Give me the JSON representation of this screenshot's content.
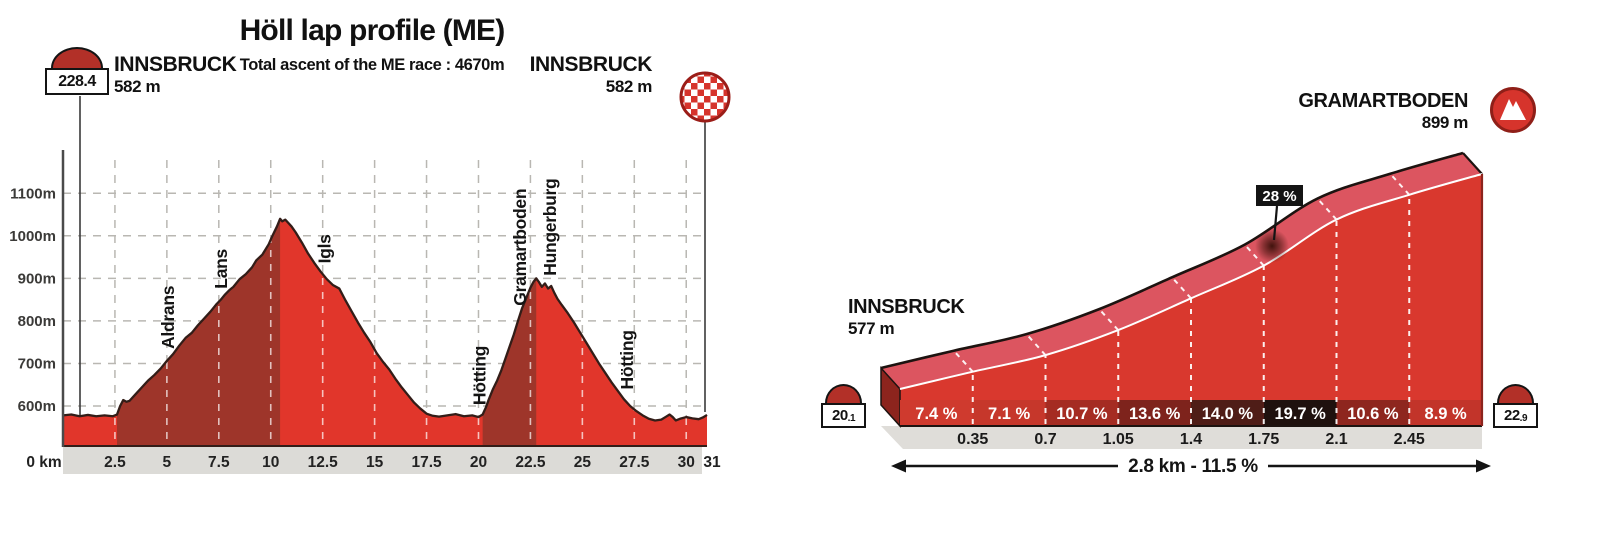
{
  "colors": {
    "bright_red": "#e1362b",
    "dark_red": "#9e352a",
    "outline": "#331d18",
    "grid": "#b9b7b2",
    "axis_strip": "#dcdbd7",
    "axis_text": "#222222",
    "face_red": "#d9382e",
    "top_band": "#dc5560",
    "side_cap": "#8c241d",
    "plinth": "#dfddd9",
    "white_line": "#ffffff",
    "callout_bg": "#141414",
    "cells": [
      "#cf3a2e",
      "#c6372b",
      "#a52c22",
      "#7e231c",
      "#4f1d17",
      "#1f110e",
      "#8e261e",
      "#c2342a"
    ],
    "stone_dome": "#b23028",
    "icon_red": "#d6342c",
    "icon_rim": "#8f1f18"
  },
  "chart_data": [
    {
      "type": "area",
      "title": "Höll lap profile (ME)",
      "subtitle": "Total ascent of the ME race : 4670m",
      "start": {
        "stone": "228.4",
        "name": "INNSBRUCK",
        "elev": "582 m"
      },
      "finish": {
        "name": "INNSBRUCK",
        "elev": "582 m"
      },
      "x_zero_label": "0 km",
      "x_ticks": [
        2.5,
        5,
        7.5,
        10,
        12.5,
        15,
        17.5,
        20,
        22.5,
        25,
        27.5,
        30
      ],
      "x_end_label": "31",
      "y_ticks": [
        {
          "elev": 600,
          "label": "600m"
        },
        {
          "elev": 700,
          "label": "700m"
        },
        {
          "elev": 800,
          "label": "800m"
        },
        {
          "elev": 900,
          "label": "900m"
        },
        {
          "elev": 1000,
          "label": "1000m"
        },
        {
          "elev": 1100,
          "label": "1100m"
        }
      ],
      "xlim": [
        0,
        31
      ],
      "climb_segments": [
        [
          2.6,
          10.45
        ],
        [
          20.2,
          22.78
        ]
      ],
      "places": [
        {
          "km": 5.0,
          "label": "Aldrans"
        },
        {
          "km": 7.55,
          "label": "Lans"
        },
        {
          "km": 12.55,
          "label": "Igls"
        },
        {
          "km": 20.0,
          "label": "Hötting"
        },
        {
          "km": 21.95,
          "label": "Gramartboden"
        },
        {
          "km": 23.4,
          "label": "Hungerburg"
        },
        {
          "km": 27.1,
          "label": "Hötting"
        }
      ],
      "profile": [
        [
          0,
          578
        ],
        [
          0.4,
          580
        ],
        [
          0.8,
          576
        ],
        [
          1.2,
          579
        ],
        [
          1.6,
          576
        ],
        [
          2,
          578
        ],
        [
          2.4,
          576
        ],
        [
          2.6,
          580
        ],
        [
          2.75,
          600
        ],
        [
          2.9,
          614
        ],
        [
          3.05,
          610
        ],
        [
          3.2,
          612
        ],
        [
          3.5,
          628
        ],
        [
          3.8,
          644
        ],
        [
          4.1,
          660
        ],
        [
          4.4,
          673
        ],
        [
          4.7,
          688
        ],
        [
          5,
          706
        ],
        [
          5.3,
          722
        ],
        [
          5.6,
          742
        ],
        [
          5.9,
          760
        ],
        [
          6.2,
          772
        ],
        [
          6.5,
          790
        ],
        [
          6.8,
          806
        ],
        [
          7.1,
          822
        ],
        [
          7.4,
          840
        ],
        [
          7.6,
          850
        ],
        [
          7.8,
          862
        ],
        [
          8,
          872
        ],
        [
          8.2,
          880
        ],
        [
          8.5,
          898
        ],
        [
          8.8,
          910
        ],
        [
          9.1,
          926
        ],
        [
          9.3,
          942
        ],
        [
          9.6,
          956
        ],
        [
          9.9,
          980
        ],
        [
          10.1,
          1002
        ],
        [
          10.3,
          1022
        ],
        [
          10.45,
          1040
        ],
        [
          10.55,
          1034
        ],
        [
          10.7,
          1038
        ],
        [
          10.85,
          1030
        ],
        [
          11,
          1022
        ],
        [
          11.2,
          1008
        ],
        [
          11.5,
          984
        ],
        [
          11.8,
          958
        ],
        [
          12.1,
          936
        ],
        [
          12.4,
          916
        ],
        [
          12.7,
          898
        ],
        [
          13,
          884
        ],
        [
          13.3,
          876
        ],
        [
          13.6,
          848
        ],
        [
          13.9,
          822
        ],
        [
          14.2,
          796
        ],
        [
          14.5,
          772
        ],
        [
          14.8,
          750
        ],
        [
          15.1,
          724
        ],
        [
          15.4,
          704
        ],
        [
          15.7,
          686
        ],
        [
          16,
          664
        ],
        [
          16.3,
          644
        ],
        [
          16.6,
          626
        ],
        [
          16.9,
          608
        ],
        [
          17.2,
          594
        ],
        [
          17.5,
          582
        ],
        [
          17.8,
          577
        ],
        [
          18.1,
          575
        ],
        [
          18.5,
          578
        ],
        [
          18.9,
          581
        ],
        [
          19.3,
          576
        ],
        [
          19.7,
          578
        ],
        [
          20,
          574
        ],
        [
          20.2,
          580
        ],
        [
          20.35,
          596
        ],
        [
          20.5,
          616
        ],
        [
          20.7,
          640
        ],
        [
          20.9,
          660
        ],
        [
          21.1,
          684
        ],
        [
          21.3,
          712
        ],
        [
          21.5,
          740
        ],
        [
          21.7,
          768
        ],
        [
          21.9,
          800
        ],
        [
          22.1,
          830
        ],
        [
          22.3,
          854
        ],
        [
          22.5,
          878
        ],
        [
          22.65,
          892
        ],
        [
          22.78,
          900
        ],
        [
          22.9,
          892
        ],
        [
          23.05,
          880
        ],
        [
          23.2,
          888
        ],
        [
          23.35,
          876
        ],
        [
          23.5,
          882
        ],
        [
          23.65,
          866
        ],
        [
          23.8,
          852
        ],
        [
          24,
          838
        ],
        [
          24.3,
          818
        ],
        [
          24.6,
          796
        ],
        [
          24.9,
          772
        ],
        [
          25.2,
          748
        ],
        [
          25.5,
          724
        ],
        [
          25.8,
          700
        ],
        [
          26.1,
          678
        ],
        [
          26.4,
          656
        ],
        [
          26.7,
          636
        ],
        [
          27,
          616
        ],
        [
          27.3,
          600
        ],
        [
          27.6,
          588
        ],
        [
          27.9,
          578
        ],
        [
          28.2,
          570
        ],
        [
          28.5,
          566
        ],
        [
          28.8,
          568
        ],
        [
          29,
          574
        ],
        [
          29.2,
          580
        ],
        [
          29.35,
          574
        ],
        [
          29.5,
          566
        ],
        [
          29.7,
          570
        ],
        [
          30,
          574
        ],
        [
          30.3,
          571
        ],
        [
          30.6,
          569
        ],
        [
          30.8,
          573
        ],
        [
          31,
          579
        ]
      ]
    },
    {
      "type": "area-3d",
      "peak": {
        "name": "GRAMARTBODEN",
        "elev": "899 m"
      },
      "start": {
        "name": "INNSBRUCK",
        "elev": "577 m",
        "stone_main": "20",
        "stone_dec": ".1"
      },
      "end_stone_main": "22",
      "end_stone_dec": ".9",
      "start_elev_m": 577,
      "end_elev_m": 899,
      "segment_km": 0.35,
      "segments": [
        {
          "gradient_pct": 7.4,
          "label": "7.4 %"
        },
        {
          "gradient_pct": 7.1,
          "label": "7.1 %"
        },
        {
          "gradient_pct": 10.7,
          "label": "10.7 %"
        },
        {
          "gradient_pct": 13.6,
          "label": "13.6 %"
        },
        {
          "gradient_pct": 14.0,
          "label": "14.0 %"
        },
        {
          "gradient_pct": 19.7,
          "label": "19.7 %"
        },
        {
          "gradient_pct": 10.6,
          "label": "10.6 %"
        },
        {
          "gradient_pct": 8.9,
          "label": "8.9 %"
        }
      ],
      "boundary_labels": [
        "0.35",
        "0.7",
        "1.05",
        "1.4",
        "1.75",
        "2.1",
        "2.45"
      ],
      "steepest_label": "28 %",
      "summary": "2.8 km - 11.5 %"
    }
  ]
}
